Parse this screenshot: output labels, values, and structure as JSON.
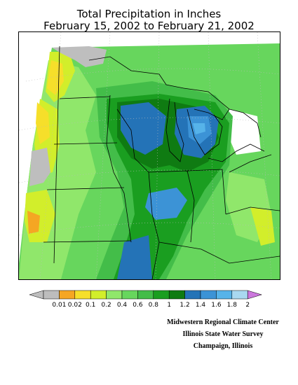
{
  "title": {
    "line1": "Total Precipitation in Inches",
    "line2": "February 15, 2002 to February 21, 2002"
  },
  "legend": {
    "labels": [
      "0.01",
      "0.02",
      "0.1",
      "0.2",
      "0.4",
      "0.6",
      "0.8",
      "1",
      "1.2",
      "1.4",
      "1.6",
      "1.8",
      "2"
    ],
    "colors": {
      "below_min": "#bebebe",
      "bins": [
        "#bdbdbd",
        "#f5a623",
        "#f6df2a",
        "#d2ee2b",
        "#90e76b",
        "#67d65d",
        "#43bd49",
        "#1a9e20",
        "#0f7b12",
        "#2473b7",
        "#3c93d6",
        "#56b3e9",
        "#a9d8f0"
      ],
      "above_max": "#cc77dd"
    }
  },
  "credits": {
    "line1": "Midwestern Regional Climate Center",
    "line2": "Illinois State Water Survey",
    "line3": "Champaign, Illinois"
  }
}
